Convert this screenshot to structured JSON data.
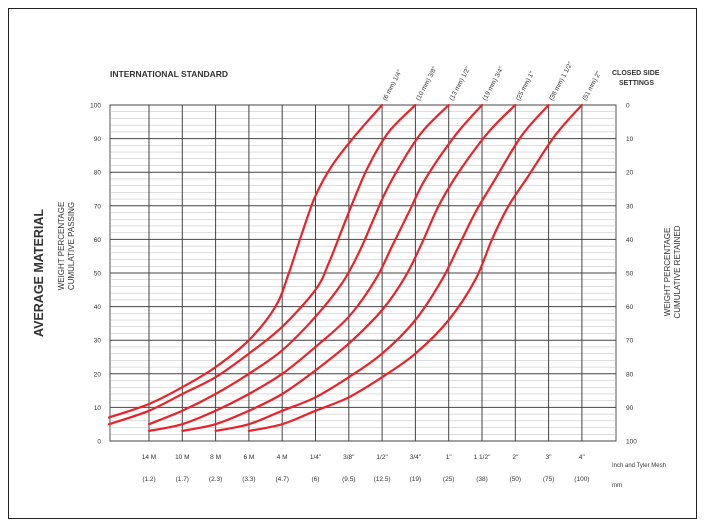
{
  "chart_data": {
    "type": "line",
    "title": "INTERNATIONAL STANDARD",
    "left_title": "AVERAGE MATERIAL",
    "ylabel_left": [
      "WEIGHT PERCENTAGE",
      "CUMULATIVE PASSING"
    ],
    "ylabel_right": [
      "WEIGHT PERCENTAGE",
      "CUMULATIVE RETAINED"
    ],
    "right_header": [
      "CLOSED SIDE",
      "SETTINGS"
    ],
    "x_units_note": [
      "Inch and Tyler Mesh",
      "mm"
    ],
    "ylim": [
      0,
      100
    ],
    "grid": true,
    "y_ticks_left": [
      "0",
      "10",
      "20",
      "30",
      "40",
      "50",
      "60",
      "70",
      "80",
      "90",
      "100"
    ],
    "y_ticks_right": [
      "100",
      "90",
      "80",
      "70",
      "60",
      "50",
      "40",
      "30",
      "20",
      "10",
      "0"
    ],
    "x_categories": [
      "14 M",
      "10 M",
      "8 M",
      "6 M",
      "4 M",
      "1/4\"",
      "3/8\"",
      "1/2\"",
      "3/4\"",
      "1\"",
      "1 1/2\"",
      "2\"",
      "3\"",
      "4\""
    ],
    "x_categories_mm": [
      "(1.2)",
      "(1.7)",
      "(2.3)",
      "(3.3)",
      "(4.7)",
      "(6)",
      "(9.5)",
      "(12.5)",
      "(19)",
      "(25)",
      "(38)",
      "(50)",
      "(75)",
      "(100)"
    ],
    "series": [
      {
        "name": "(6 mm) 1/4\"",
        "x": [
          -1.2,
          0,
          1,
          2,
          3,
          3.8,
          4.2,
          4.6,
          5,
          5.5,
          6.2,
          7.0
        ],
        "y": [
          7,
          11,
          16,
          22,
          30,
          40,
          50,
          62,
          73,
          82,
          91,
          100
        ]
      },
      {
        "name": "(10 mm) 3/8\"",
        "x": [
          -1.2,
          0,
          1,
          2,
          3,
          4,
          5,
          5.4,
          5.8,
          6.2,
          6.6,
          7.2,
          8.0
        ],
        "y": [
          5,
          9,
          14,
          19,
          26,
          34,
          45,
          53,
          63,
          73,
          82,
          92,
          100
        ]
      },
      {
        "name": "(13 mm) 1/2\"",
        "x": [
          0,
          1,
          2,
          3,
          4,
          5,
          5.8,
          6.3,
          6.7,
          7.1,
          7.6,
          8.2,
          9.0
        ],
        "y": [
          5,
          9,
          14,
          20,
          27,
          37,
          47,
          56,
          65,
          74,
          83,
          92,
          100
        ]
      },
      {
        "name": "(19 mm) 3/4\"",
        "x": [
          0,
          1,
          2,
          3,
          4,
          5,
          6,
          6.8,
          7.3,
          7.8,
          8.3,
          9.2,
          10.0
        ],
        "y": [
          3,
          5,
          9,
          14,
          20,
          28,
          37,
          48,
          58,
          68,
          78,
          91,
          100
        ]
      },
      {
        "name": "(25 mm) 1\"",
        "x": [
          1,
          2,
          3,
          4,
          5,
          6,
          7,
          7.7,
          8.2,
          8.7,
          9.3,
          10.2,
          11.0
        ],
        "y": [
          3,
          5,
          9,
          14,
          21,
          29,
          39,
          49,
          59,
          70,
          80,
          92,
          100
        ]
      },
      {
        "name": "(38 mm) 1 1/2\"",
        "x": [
          2,
          3,
          4,
          5,
          6,
          7,
          8,
          8.8,
          9.3,
          9.8,
          10.4,
          11.2,
          12.0
        ],
        "y": [
          3,
          5,
          9,
          13,
          19,
          26,
          36,
          48,
          58,
          68,
          78,
          91,
          100
        ]
      },
      {
        "name": "(51 mm) 2\"",
        "x": [
          3,
          4,
          5,
          6,
          7,
          8,
          9,
          9.8,
          10.3,
          10.8,
          11.4,
          12.2,
          13.0
        ],
        "y": [
          3,
          5,
          9,
          13,
          19,
          26,
          36,
          48,
          60,
          70,
          79,
          91,
          100
        ]
      }
    ],
    "line_color": "#e8232b"
  }
}
